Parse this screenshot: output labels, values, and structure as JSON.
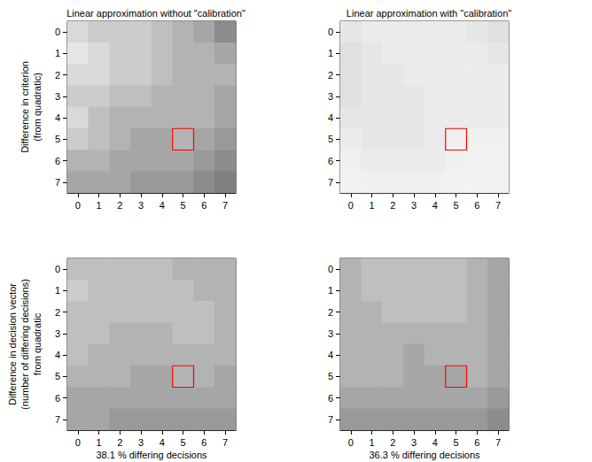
{
  "chart_data": [
    {
      "type": "heatmap",
      "title": "Linear approximation without \"calibration\"",
      "y_label": [
        "Difference in criterion",
        "(from quadratic)"
      ],
      "x": [
        0,
        1,
        2,
        3,
        4,
        5,
        6,
        7
      ],
      "y": [
        0,
        1,
        2,
        3,
        4,
        5,
        6,
        7
      ],
      "cell_range": [
        0,
        1
      ],
      "cells": [
        [
          0.15,
          0.2,
          0.2,
          0.2,
          0.25,
          0.3,
          0.35,
          0.45
        ],
        [
          0.1,
          0.15,
          0.2,
          0.2,
          0.25,
          0.3,
          0.3,
          0.35
        ],
        [
          0.15,
          0.15,
          0.2,
          0.2,
          0.25,
          0.3,
          0.3,
          0.3
        ],
        [
          0.2,
          0.2,
          0.25,
          0.25,
          0.3,
          0.3,
          0.3,
          0.35
        ],
        [
          0.15,
          0.25,
          0.3,
          0.3,
          0.3,
          0.3,
          0.3,
          0.35
        ],
        [
          0.2,
          0.25,
          0.3,
          0.35,
          0.35,
          0.3,
          0.35,
          0.4
        ],
        [
          0.3,
          0.3,
          0.35,
          0.35,
          0.35,
          0.35,
          0.4,
          0.45
        ],
        [
          0.35,
          0.35,
          0.35,
          0.4,
          0.4,
          0.4,
          0.45,
          0.5
        ]
      ],
      "highlight_cell": [
        5,
        5
      ]
    },
    {
      "type": "heatmap",
      "title": "Linear approximation with \"calibration\"",
      "x": [
        0,
        1,
        2,
        3,
        4,
        5,
        6,
        7
      ],
      "y": [
        0,
        1,
        2,
        3,
        4,
        5,
        6,
        7
      ],
      "cell_range": [
        0,
        1
      ],
      "cells": [
        [
          0.1,
          0.08,
          0.08,
          0.08,
          0.08,
          0.08,
          0.1,
          0.12
        ],
        [
          0.12,
          0.1,
          0.08,
          0.08,
          0.08,
          0.08,
          0.08,
          0.1
        ],
        [
          0.12,
          0.1,
          0.1,
          0.08,
          0.08,
          0.08,
          0.08,
          0.08
        ],
        [
          0.12,
          0.1,
          0.1,
          0.1,
          0.08,
          0.08,
          0.08,
          0.08
        ],
        [
          0.1,
          0.1,
          0.1,
          0.1,
          0.08,
          0.08,
          0.08,
          0.08
        ],
        [
          0.08,
          0.1,
          0.1,
          0.1,
          0.08,
          0.06,
          0.06,
          0.06
        ],
        [
          0.06,
          0.08,
          0.08,
          0.08,
          0.08,
          0.06,
          0.05,
          0.05
        ],
        [
          0.05,
          0.06,
          0.06,
          0.06,
          0.06,
          0.05,
          0.05,
          0.05
        ]
      ],
      "highlight_cell": [
        5,
        5
      ]
    },
    {
      "type": "heatmap",
      "y_label": [
        "Difference in decision vector",
        "(number of differing decisions)",
        "from quadratic"
      ],
      "x_label": "38.1 % differing decisions",
      "x": [
        0,
        1,
        2,
        3,
        4,
        5,
        6,
        7
      ],
      "y": [
        0,
        1,
        2,
        3,
        4,
        5,
        6,
        7
      ],
      "cell_range": [
        0,
        1
      ],
      "cells": [
        [
          0.25,
          0.25,
          0.25,
          0.25,
          0.25,
          0.3,
          0.3,
          0.3
        ],
        [
          0.2,
          0.25,
          0.25,
          0.25,
          0.25,
          0.25,
          0.3,
          0.3
        ],
        [
          0.25,
          0.25,
          0.25,
          0.25,
          0.25,
          0.25,
          0.25,
          0.3
        ],
        [
          0.25,
          0.25,
          0.3,
          0.3,
          0.3,
          0.25,
          0.25,
          0.3
        ],
        [
          0.25,
          0.3,
          0.3,
          0.3,
          0.3,
          0.3,
          0.3,
          0.3
        ],
        [
          0.3,
          0.3,
          0.3,
          0.35,
          0.35,
          0.3,
          0.3,
          0.35
        ],
        [
          0.35,
          0.35,
          0.35,
          0.35,
          0.35,
          0.35,
          0.35,
          0.35
        ],
        [
          0.35,
          0.35,
          0.4,
          0.4,
          0.4,
          0.4,
          0.4,
          0.4
        ]
      ],
      "highlight_cell": [
        5,
        5
      ]
    },
    {
      "type": "heatmap",
      "x_label": "36.3 % differing decisions",
      "x": [
        0,
        1,
        2,
        3,
        4,
        5,
        6,
        7
      ],
      "y": [
        0,
        1,
        2,
        3,
        4,
        5,
        6,
        7
      ],
      "cell_range": [
        0,
        1
      ],
      "cells": [
        [
          0.3,
          0.25,
          0.25,
          0.25,
          0.25,
          0.25,
          0.3,
          0.35
        ],
        [
          0.3,
          0.25,
          0.25,
          0.25,
          0.25,
          0.25,
          0.3,
          0.35
        ],
        [
          0.3,
          0.3,
          0.25,
          0.25,
          0.25,
          0.25,
          0.3,
          0.35
        ],
        [
          0.3,
          0.3,
          0.3,
          0.3,
          0.3,
          0.3,
          0.3,
          0.35
        ],
        [
          0.3,
          0.3,
          0.3,
          0.35,
          0.3,
          0.3,
          0.3,
          0.35
        ],
        [
          0.3,
          0.3,
          0.3,
          0.35,
          0.35,
          0.35,
          0.3,
          0.35
        ],
        [
          0.35,
          0.35,
          0.35,
          0.35,
          0.35,
          0.35,
          0.35,
          0.4
        ],
        [
          0.4,
          0.4,
          0.4,
          0.4,
          0.4,
          0.4,
          0.4,
          0.45
        ]
      ],
      "highlight_cell": [
        5,
        5
      ]
    }
  ]
}
